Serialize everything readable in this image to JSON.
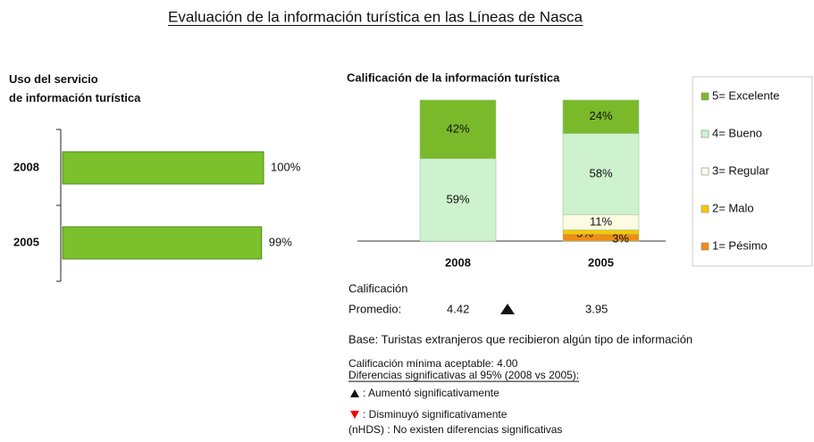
{
  "title": "Evaluación de la información turística en las Líneas de Nasca",
  "chart_data": [
    {
      "type": "hbar",
      "title": "Uso del servicio de información turística",
      "categories": [
        "2008",
        "2005"
      ],
      "values": [
        100,
        99
      ],
      "value_labels": [
        "100%",
        "99%"
      ],
      "color": "#7cc02c",
      "xlim": [
        0,
        100
      ]
    },
    {
      "type": "stacked_bar",
      "title": "Calificación de la información turística",
      "categories": [
        "2008",
        "2005"
      ],
      "ylim": [
        0,
        101
      ],
      "legend": "right",
      "series": [
        {
          "name": "5= Excelente",
          "color": "#7ab929",
          "values": [
            42,
            24
          ],
          "value_labels": [
            "42%",
            "24%"
          ]
        },
        {
          "name": "4= Bueno",
          "color": "#cdf2cd",
          "values": [
            59,
            58
          ],
          "value_labels": [
            "59%",
            "58%"
          ]
        },
        {
          "name": "3= Regular",
          "color": "#fdfbe2",
          "values": [
            0,
            11
          ],
          "value_labels": [
            null,
            "11%"
          ]
        },
        {
          "name": "2= Malo",
          "color": "#f7c800",
          "values": [
            0,
            3
          ],
          "value_labels": [
            null,
            "3%"
          ]
        },
        {
          "name": "1= Pésimo",
          "color": "#f08c10",
          "values": [
            0,
            5
          ],
          "value_labels": [
            null,
            "5%"
          ]
        }
      ]
    }
  ],
  "average": {
    "label_1": "Calificación",
    "label_2": "Promedio:",
    "values": [
      4.42,
      3.95
    ]
  },
  "notes": {
    "base": "Base: Turistas extranjeros que recibieron algún tipo de información",
    "min": "Calificación mínima aceptable: 4.00",
    "diff": "Diferencias significativas al 95% (2008 vs 2005):",
    "up": ": Aumentó significativamente",
    "down": ": Disminuyó significativamente",
    "nhds": "(nHDS) : No existen diferencias significativas"
  }
}
